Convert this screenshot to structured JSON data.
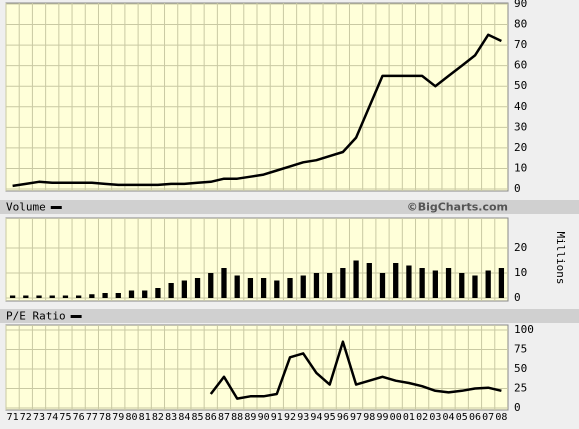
{
  "chart_data": [
    {
      "type": "line",
      "series": [
        {
          "color": "#000000",
          "values": [
            1.5,
            2.5,
            3.5,
            3,
            3,
            3,
            3,
            2.5,
            2,
            2,
            2,
            2,
            2.5,
            2.5,
            3,
            3.5,
            5,
            5,
            6,
            7,
            9,
            11,
            13,
            14,
            16,
            18,
            25,
            40,
            55,
            55,
            55,
            55,
            50,
            55,
            60,
            65,
            75,
            72
          ]
        }
      ],
      "ylim": [
        0,
        90
      ],
      "yticks": [
        0,
        10,
        20,
        30,
        40,
        50,
        60,
        70,
        80,
        90
      ],
      "grid": true
    },
    {
      "type": "bar",
      "y_label": "Millions",
      "source": "©BigCharts.com",
      "series": [
        {
          "name": "Volume",
          "color": "#000000",
          "values": [
            1,
            1,
            1,
            1,
            1,
            1,
            1.5,
            2,
            2,
            3,
            3,
            4,
            6,
            7,
            8,
            10,
            12,
            9,
            8,
            8,
            7,
            8,
            9,
            10,
            10,
            12,
            15,
            14,
            10,
            14,
            13,
            12,
            11,
            12,
            10,
            9,
            11,
            12
          ]
        }
      ],
      "ylim": [
        0,
        30
      ],
      "yticks": [
        0,
        10,
        20
      ],
      "grid": true
    },
    {
      "type": "line",
      "categories": [
        "71",
        "72",
        "73",
        "74",
        "75",
        "76",
        "77",
        "78",
        "79",
        "80",
        "81",
        "82",
        "83",
        "84",
        "85",
        "86",
        "87",
        "88",
        "89",
        "90",
        "91",
        "92",
        "93",
        "94",
        "95",
        "96",
        "97",
        "98",
        "99",
        "00",
        "01",
        "02",
        "03",
        "04",
        "05",
        "06",
        "07",
        "08"
      ],
      "series": [
        {
          "name": "P/E Ratio",
          "color": "#000000",
          "values": [
            null,
            null,
            null,
            null,
            null,
            null,
            null,
            null,
            null,
            null,
            null,
            null,
            null,
            null,
            null,
            18,
            40,
            12,
            15,
            15,
            18,
            65,
            70,
            45,
            30,
            85,
            30,
            35,
            40,
            35,
            32,
            28,
            22,
            20,
            22,
            25,
            26,
            22
          ]
        }
      ],
      "ylim": [
        0,
        100
      ],
      "yticks": [
        0,
        25,
        50,
        75,
        100
      ],
      "grid": true
    }
  ]
}
